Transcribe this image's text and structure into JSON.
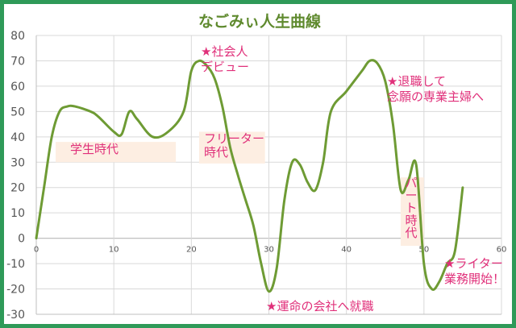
{
  "chart_data": {
    "type": "line",
    "title": "なごみぃ人生曲線",
    "xlim": [
      0,
      60
    ],
    "ylim": [
      -30,
      80
    ],
    "xticks": [
      0,
      10,
      20,
      30,
      40,
      50,
      60
    ],
    "yticks": [
      80,
      70,
      60,
      50,
      40,
      30,
      20,
      10,
      0,
      -10,
      -20,
      -30
    ],
    "grid": true,
    "series": [
      {
        "color": "#6e9b34",
        "points": [
          [
            0,
            0
          ],
          [
            1,
            20
          ],
          [
            2,
            40
          ],
          [
            3,
            50
          ],
          [
            4,
            52
          ],
          [
            5,
            52
          ],
          [
            7,
            50
          ],
          [
            8,
            48
          ],
          [
            10,
            42
          ],
          [
            11,
            41
          ],
          [
            12,
            50
          ],
          [
            13,
            47
          ],
          [
            15,
            40
          ],
          [
            17,
            42
          ],
          [
            19,
            50
          ],
          [
            20,
            66
          ],
          [
            21,
            70
          ],
          [
            22,
            68
          ],
          [
            23,
            63
          ],
          [
            24,
            52
          ],
          [
            25,
            36
          ],
          [
            26,
            25
          ],
          [
            27,
            15
          ],
          [
            28,
            5
          ],
          [
            29,
            -10
          ],
          [
            30,
            -21
          ],
          [
            31,
            -12
          ],
          [
            32,
            15
          ],
          [
            33,
            30
          ],
          [
            34,
            29
          ],
          [
            35,
            22
          ],
          [
            36,
            19
          ],
          [
            37,
            30
          ],
          [
            38,
            50
          ],
          [
            40,
            58
          ],
          [
            42,
            66
          ],
          [
            43,
            70
          ],
          [
            44,
            69
          ],
          [
            45,
            62
          ],
          [
            46,
            45
          ],
          [
            47,
            19
          ],
          [
            48,
            23
          ],
          [
            49,
            29
          ],
          [
            50,
            -10
          ],
          [
            51,
            -20
          ],
          [
            52,
            -17
          ],
          [
            53,
            -10
          ],
          [
            54,
            -5
          ],
          [
            55,
            20
          ]
        ]
      }
    ],
    "annotations": [
      {
        "lines": [
          "学生時代"
        ],
        "color": "#e0307a",
        "band_x": [
          2.5,
          18
        ],
        "band_y": [
          30,
          38
        ]
      },
      {
        "lines": [
          "★社会人",
          "デビュー"
        ],
        "color": "#e0307a"
      },
      {
        "lines": [
          "フリーター",
          "時代"
        ],
        "color": "#e0307a",
        "band_x": [
          21,
          29.5
        ],
        "band_y": [
          29.5,
          42
        ]
      },
      {
        "lines": [
          "★運命の会社へ就職"
        ],
        "color": "#e0307a"
      },
      {
        "lines": [
          "★退職して",
          "念願の専業主婦へ"
        ],
        "color": "#e0307a"
      },
      {
        "lines": [
          "パ",
          "ー",
          "ト",
          "時",
          "代"
        ],
        "color": "#e0307a",
        "vertical": true,
        "band_x": [
          47,
          50
        ],
        "band_y": [
          -3,
          24
        ]
      },
      {
        "lines": [
          "★ライター",
          "業務開始！"
        ],
        "color": "#e0307a"
      }
    ],
    "colors": {
      "frame": "#2e9a58",
      "title": "#5f8a2e",
      "band": "#fdeee2",
      "grid": "#d9d9d9",
      "axis": "#bfbfbf"
    }
  }
}
